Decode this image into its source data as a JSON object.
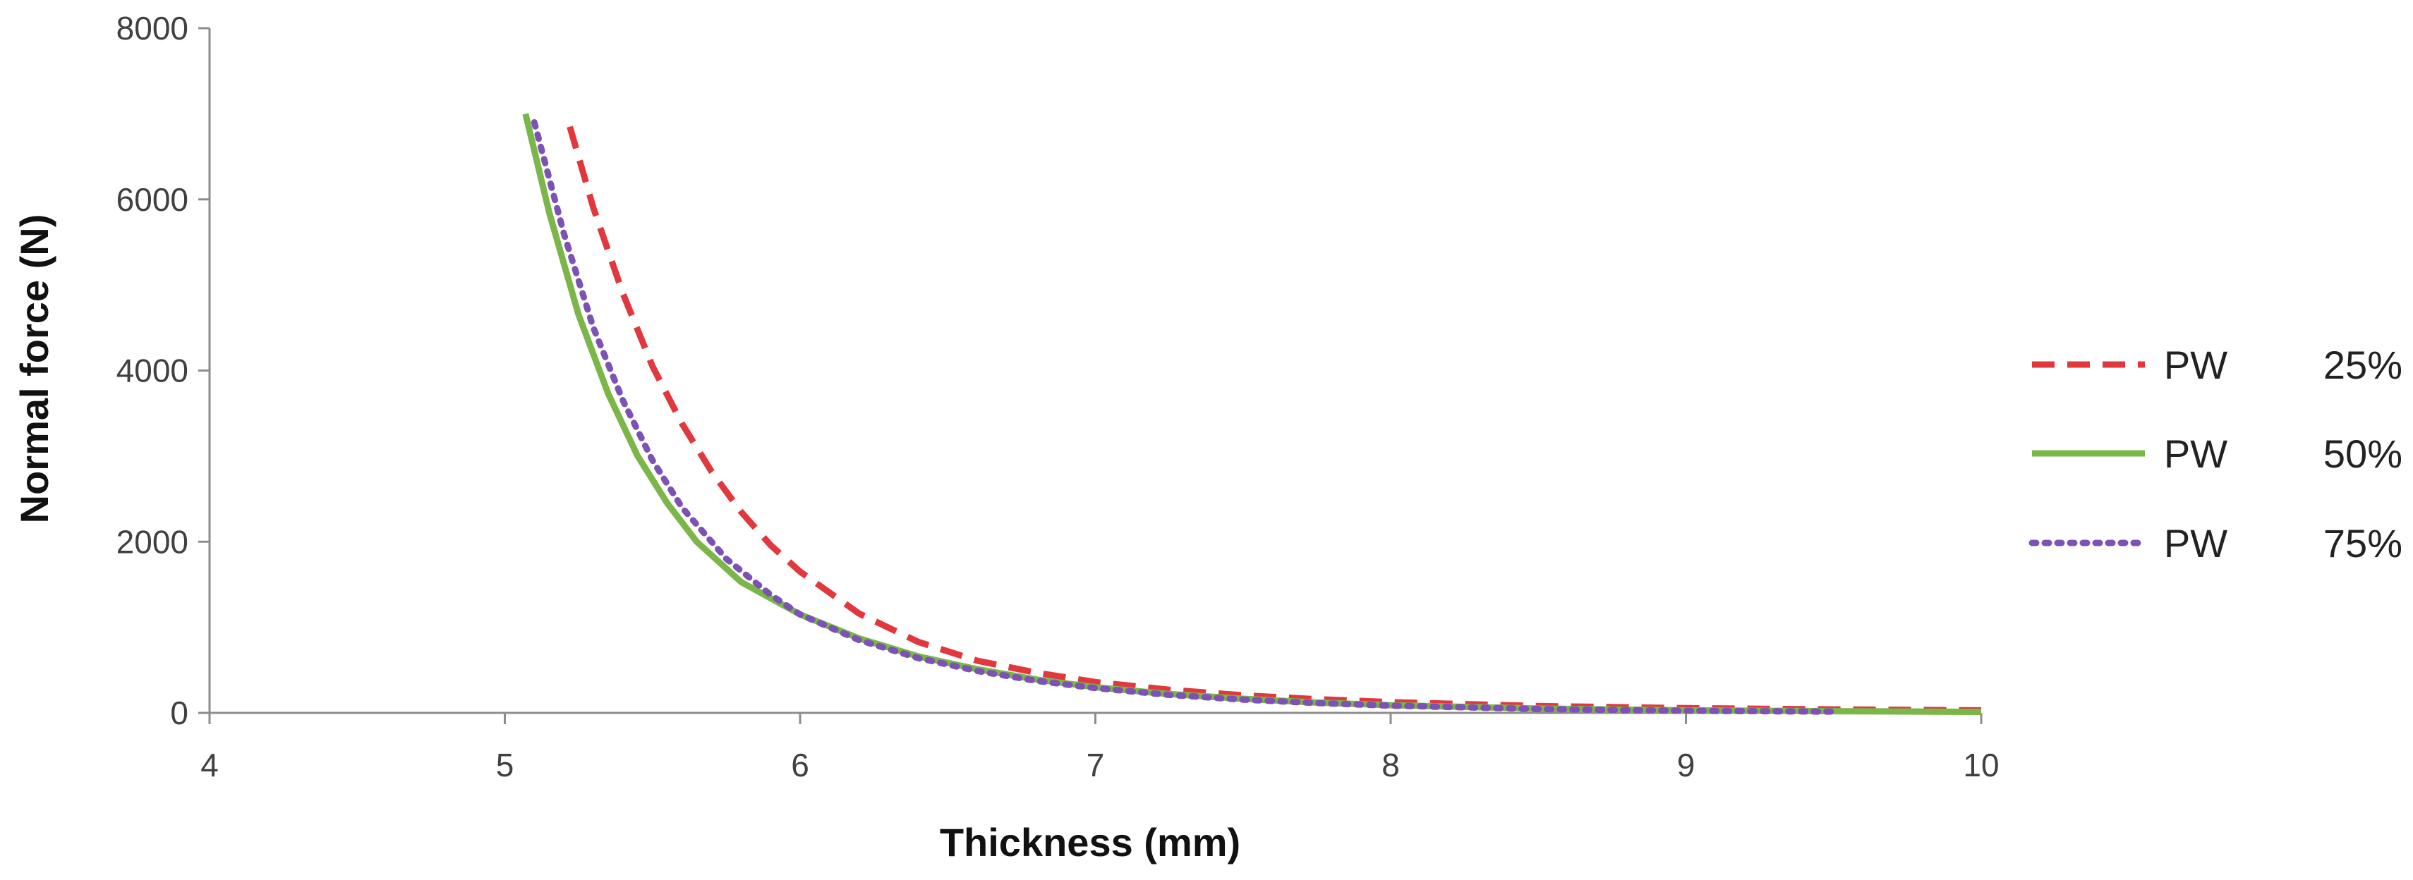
{
  "chart_data": {
    "type": "line",
    "title": "",
    "xlabel": "Thickness (mm)",
    "ylabel": "Normal force (N)",
    "xlim": [
      4,
      10
    ],
    "ylim": [
      0,
      8000
    ],
    "xticks": [
      "4",
      "5",
      "6",
      "7",
      "8",
      "9",
      "10"
    ],
    "yticks": [
      "0",
      "2000",
      "4000",
      "6000",
      "8000"
    ],
    "legend_position": "right",
    "series": [
      {
        "name": "PW",
        "pct": "25%",
        "color": "#e0383d",
        "dash": "dashed",
        "x": [
          5.22,
          5.3,
          5.4,
          5.5,
          5.6,
          5.7,
          5.8,
          5.9,
          6.0,
          6.2,
          6.4,
          6.6,
          6.8,
          7.0,
          7.25,
          7.5,
          7.75,
          8.0,
          8.5,
          9.0,
          9.5,
          10.0
        ],
        "y": [
          6850,
          5900,
          4900,
          4050,
          3380,
          2820,
          2350,
          1960,
          1650,
          1160,
          830,
          610,
          470,
          360,
          270,
          205,
          160,
          125,
          80,
          55,
          40,
          30
        ]
      },
      {
        "name": "PW",
        "pct": "50%",
        "color": "#7ab648",
        "dash": "solid",
        "x": [
          5.07,
          5.15,
          5.25,
          5.35,
          5.45,
          5.55,
          5.65,
          5.8,
          6.0,
          6.2,
          6.4,
          6.6,
          6.8,
          7.0,
          7.25,
          7.5,
          7.75,
          8.0,
          8.5,
          9.0,
          9.5,
          10.0
        ],
        "y": [
          7000,
          5850,
          4650,
          3730,
          3000,
          2450,
          2000,
          1530,
          1150,
          870,
          660,
          510,
          390,
          300,
          220,
          165,
          120,
          90,
          50,
          30,
          20,
          12
        ]
      },
      {
        "name": "PW",
        "pct": "75%",
        "color": "#7d52b5",
        "dash": "dotted",
        "x": [
          5.1,
          5.2,
          5.3,
          5.4,
          5.5,
          5.6,
          5.75,
          5.9,
          6.0,
          6.2,
          6.4,
          6.6,
          6.8,
          7.0,
          7.25,
          7.5,
          7.75,
          8.0,
          8.5,
          9.0,
          9.5
        ],
        "y": [
          6900,
          5600,
          4500,
          3650,
          2950,
          2400,
          1800,
          1380,
          1150,
          850,
          640,
          490,
          375,
          290,
          210,
          155,
          115,
          85,
          45,
          25,
          15
        ]
      }
    ]
  }
}
